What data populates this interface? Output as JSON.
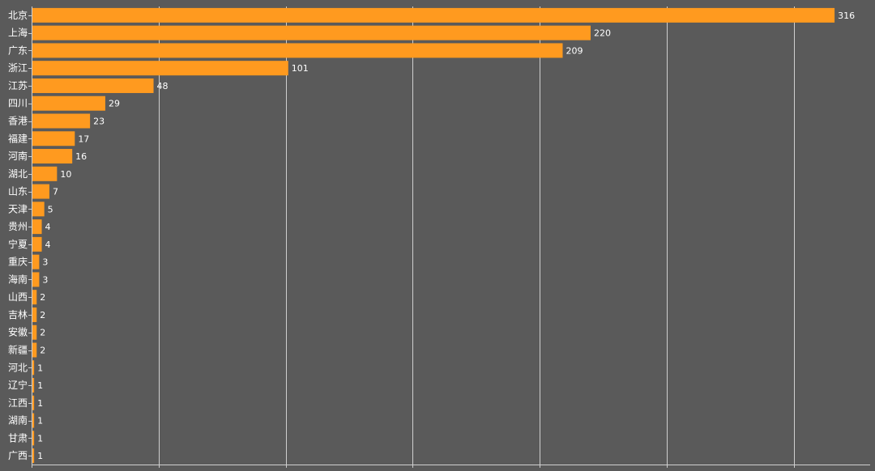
{
  "chart_data": {
    "type": "bar",
    "orientation": "horizontal",
    "categories": [
      "北京",
      "上海",
      "广东",
      "浙江",
      "江苏",
      "四川",
      "香港",
      "福建",
      "河南",
      "湖北",
      "山东",
      "天津",
      "贵州",
      "宁夏",
      "重庆",
      "海南",
      "山西",
      "吉林",
      "安徽",
      "新疆",
      "河北",
      "辽宁",
      "江西",
      "湖南",
      "甘肃",
      "广西"
    ],
    "values": [
      316,
      220,
      209,
      101,
      48,
      29,
      23,
      17,
      16,
      10,
      7,
      5,
      4,
      4,
      3,
      3,
      2,
      2,
      2,
      2,
      1,
      1,
      1,
      1,
      1,
      1
    ],
    "xlim": [
      0,
      330
    ],
    "x_gridlines": [
      0,
      50,
      100,
      150,
      200,
      250,
      300
    ],
    "grid": true,
    "data_labels": true,
    "bar_color": "#ff9a1f",
    "background_color": "#5a5a5a",
    "text_color": "#ffffff",
    "grid_color": "#cfcfcf"
  }
}
